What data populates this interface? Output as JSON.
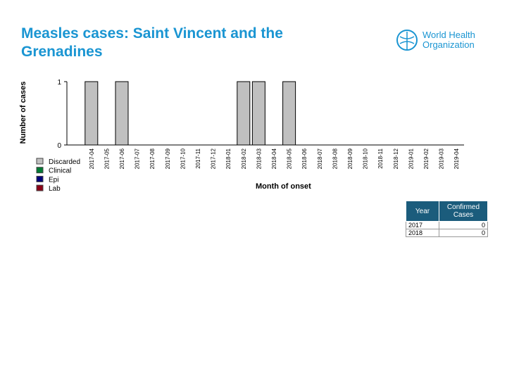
{
  "chart_data": {
    "type": "stacked-bar",
    "title": "Measles cases: Saint Vincent and the Grenadines",
    "y_label": "Number of cases",
    "x_label": "Month of onset",
    "categories": [
      "2017-04",
      "2017-05",
      "2017-06",
      "2017-07",
      "2017-08",
      "2017-09",
      "2017-10",
      "2017-11",
      "2017-12",
      "2018-01",
      "2018-02",
      "2018-03",
      "2018-04",
      "2018-05",
      "2018-06",
      "2018-07",
      "2018-08",
      "2018-09",
      "2018-10",
      "2018-11",
      "2018-12",
      "2019-01",
      "2019-02",
      "2019-03",
      "2019-04"
    ],
    "series": [
      {
        "name": "Discarded",
        "color": "#c0c0c0",
        "values": [
          1,
          0,
          1,
          0,
          0,
          0,
          0,
          0,
          0,
          0,
          1,
          1,
          0,
          1,
          0,
          0,
          0,
          0,
          0,
          0,
          0,
          0,
          0,
          0,
          0
        ]
      },
      {
        "name": "Clinical",
        "color": "#007a33",
        "values": [
          0,
          0,
          0,
          0,
          0,
          0,
          0,
          0,
          0,
          0,
          0,
          0,
          0,
          0,
          0,
          0,
          0,
          0,
          0,
          0,
          0,
          0,
          0,
          0,
          0
        ]
      },
      {
        "name": "Epi",
        "color": "#00007a",
        "values": [
          0,
          0,
          0,
          0,
          0,
          0,
          0,
          0,
          0,
          0,
          0,
          0,
          0,
          0,
          0,
          0,
          0,
          0,
          0,
          0,
          0,
          0,
          0,
          0,
          0
        ]
      },
      {
        "name": "Lab",
        "color": "#8b0016",
        "values": [
          0,
          0,
          0,
          0,
          0,
          0,
          0,
          0,
          0,
          0,
          0,
          0,
          0,
          0,
          0,
          0,
          0,
          0,
          0,
          0,
          0,
          0,
          0,
          0,
          0
        ]
      }
    ],
    "ylim": [
      0,
      1
    ],
    "yticks": [
      0,
      1
    ]
  },
  "table": {
    "header": [
      "Year",
      "Confirmed Cases"
    ],
    "rows": [
      [
        "2017",
        "0"
      ],
      [
        "2018",
        "0"
      ]
    ]
  },
  "logo": {
    "lines": [
      "World Health",
      "Organization"
    ]
  }
}
